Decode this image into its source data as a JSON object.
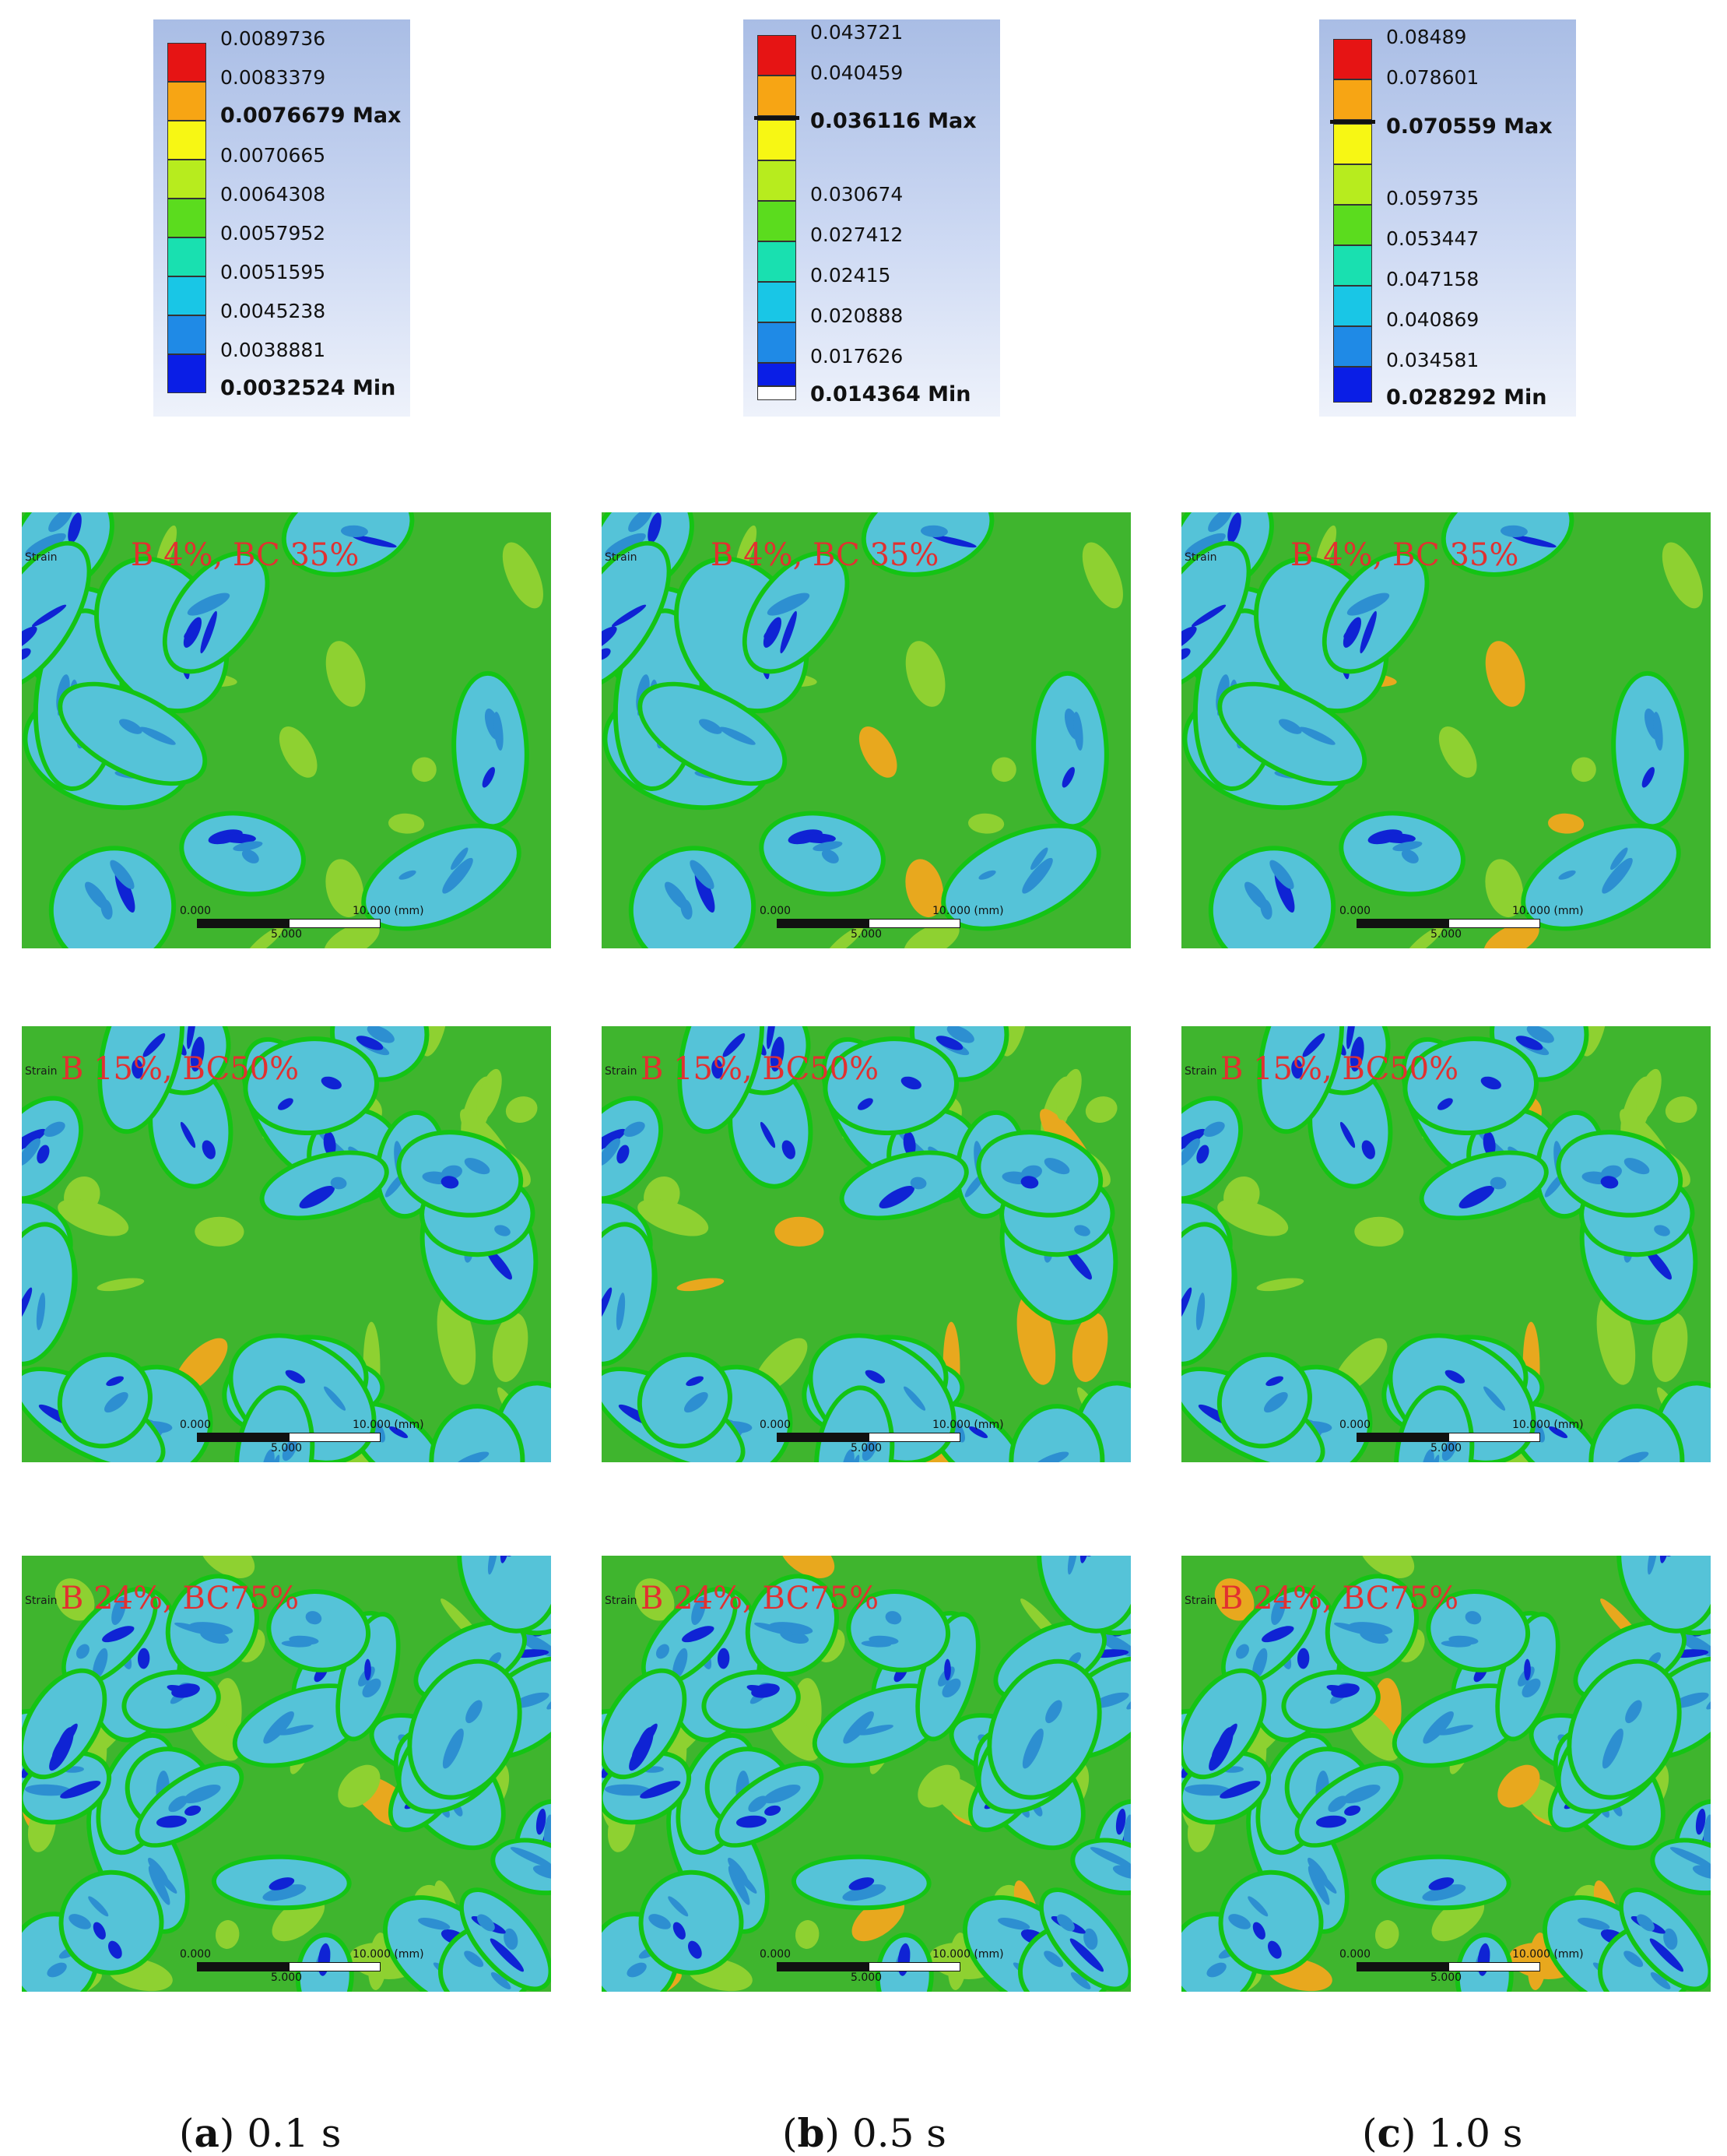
{
  "colors": {
    "scale": [
      "#0a1ee6",
      "#1f8ae6",
      "#19c6e6",
      "#19e0b0",
      "#14c414",
      "#5bdc1e",
      "#b7ec1e",
      "#f7f714",
      "#f7a514",
      "#e61414"
    ],
    "cell_light": "#55c3d8",
    "cell_mid": "#2d8fd1",
    "cell_dark": "#0f23d4",
    "matrix": "#3fb52e",
    "matrix_light": "#8ed131",
    "hot": "#e8a81e",
    "caption": "#e23030"
  },
  "legends": [
    {
      "labels": [
        "0.0089736",
        "0.0083379",
        "0.0076679 Max",
        "0.0070665",
        "0.0064308",
        "0.0057952",
        "0.0051595",
        "0.0045238",
        "0.0038881",
        "0.0032524 Min"
      ]
    },
    {
      "labels": [
        "0.043721",
        "0.040459",
        "0.036116 Max",
        "0.030674",
        "0.027412",
        "0.02415",
        "0.020888",
        "0.017626",
        "0.014364 Min"
      ]
    },
    {
      "labels": [
        "0.08489",
        "0.078601",
        "0.070559 Max",
        "0.059735",
        "0.053447",
        "0.047158",
        "0.040869",
        "0.034581",
        "0.028292 Min"
      ]
    }
  ],
  "panel": {
    "strain_label": "Strain",
    "scale_zero": "0.000",
    "scale_mid": "5.000",
    "scale_end": "10.000 (mm)"
  },
  "rows": [
    {
      "caption": "B 4%, BC 35%"
    },
    {
      "caption": "B 15%, BC50%"
    },
    {
      "caption": "B 24%, BC75%"
    }
  ],
  "columns": [
    {
      "letter": "a",
      "time": "0.1 s"
    },
    {
      "letter": "b",
      "time": "0.5 s"
    },
    {
      "letter": "c",
      "time": "1.0 s"
    }
  ]
}
